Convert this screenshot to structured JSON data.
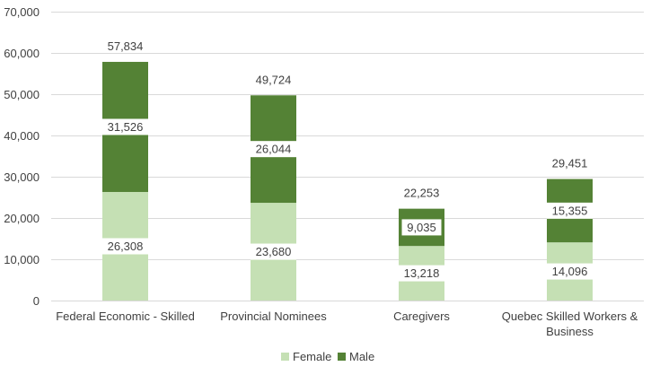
{
  "chart_data": {
    "type": "bar",
    "stacked": true,
    "categories": [
      [
        "Federal Economic - Skilled"
      ],
      [
        "Provincial Nominees"
      ],
      [
        "Caregivers"
      ],
      [
        "Quebec Skilled Workers &",
        "Business"
      ]
    ],
    "series": [
      {
        "name": "Female",
        "values": [
          26308,
          23680,
          13218,
          14096
        ],
        "labels": [
          "26,308",
          "23,680",
          "13,218",
          "14,096"
        ],
        "color": "#c5e0b4"
      },
      {
        "name": "Male",
        "values": [
          31526,
          26044,
          9035,
          15355
        ],
        "labels": [
          "31,526",
          "26,044",
          "9,035",
          "15,355"
        ],
        "color": "#548235"
      }
    ],
    "totals": [
      57834,
      49724,
      22253,
      29451
    ],
    "total_labels": [
      "57,834",
      "49,724",
      "22,253",
      "29,451"
    ],
    "ylim": [
      0,
      70000
    ],
    "yticks": [
      0,
      10000,
      20000,
      30000,
      40000,
      50000,
      60000,
      70000
    ],
    "ytick_labels": [
      "0",
      "10,000",
      "20,000",
      "30,000",
      "40,000",
      "50,000",
      "60,000",
      "70,000"
    ],
    "grid": true,
    "legend_position": "bottom",
    "gridline_color": "#d9d9d9",
    "text_color": "#404040"
  }
}
